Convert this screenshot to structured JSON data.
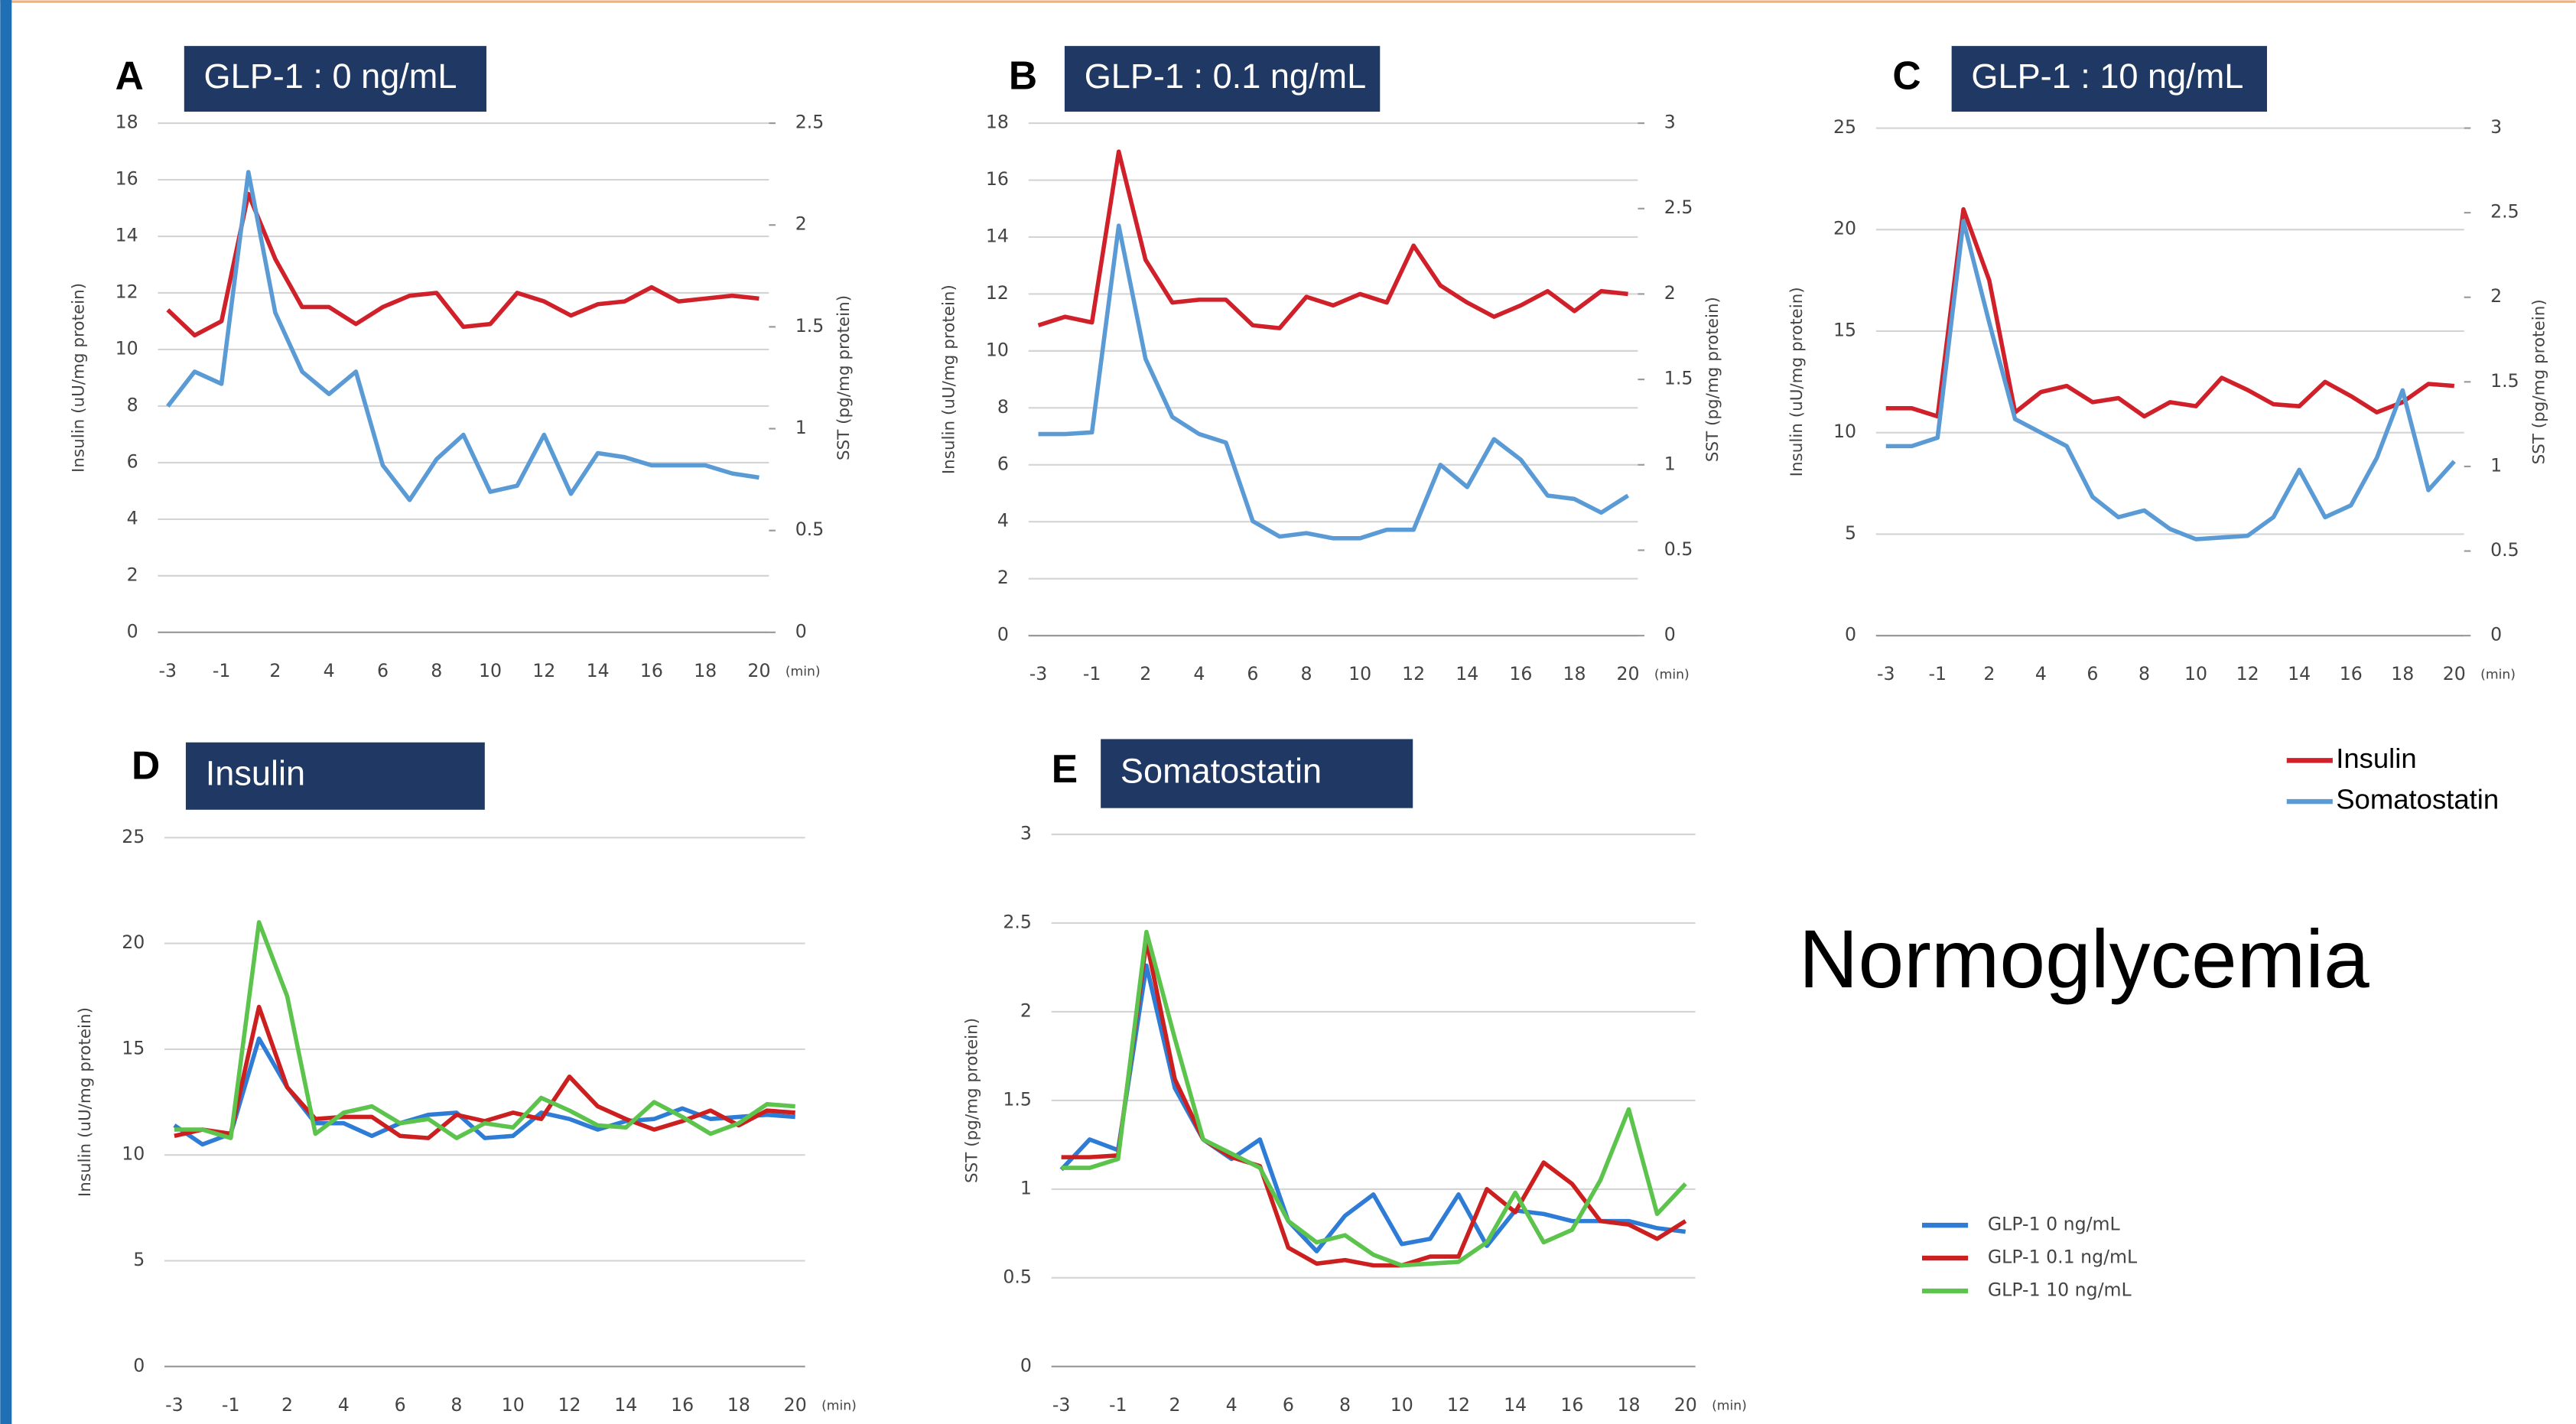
{
  "chart_data": [
    {
      "type": "line",
      "panel": "A",
      "title": "GLP-1 : 0 ng/mL",
      "xlabel": "(min)",
      "ylabel": "Insulin (uU/mg protein)",
      "y2label": "SST (pg/mg protein)",
      "categories": [
        "-3",
        null,
        "-1",
        null,
        "2",
        null,
        "4",
        null,
        "6",
        null,
        "8",
        null,
        "10",
        null,
        "12",
        null,
        "14",
        null,
        "16",
        null,
        "18",
        null,
        "20"
      ],
      "ylim": [
        0,
        18
      ],
      "yticks": [
        0,
        2,
        4,
        6,
        8,
        10,
        12,
        14,
        16,
        18
      ],
      "y2lim": [
        0,
        2.5
      ],
      "y2ticks": [
        0,
        0.5,
        1,
        1.5,
        2,
        2.5
      ],
      "grid": true,
      "series": [
        {
          "color": "#d0202a",
          "values": [
            11.4,
            10.5,
            11,
            15.5,
            13.2,
            11.5,
            11.5,
            10.9,
            11.5,
            11.9,
            12,
            10.8,
            10.9,
            12,
            11.7,
            11.2,
            11.6,
            11.7,
            12.2,
            11.7,
            11.8,
            11.9,
            11.8
          ]
        },
        {
          "color": "#5b9bd5",
          "axis": "y2",
          "values": [
            1.11,
            1.28,
            1.22,
            2.26,
            1.57,
            1.28,
            1.17,
            1.28,
            0.82,
            0.65,
            0.85,
            0.97,
            0.69,
            0.72,
            0.97,
            0.68,
            0.88,
            0.86,
            0.82,
            0.82,
            0.82,
            0.78,
            0.76
          ]
        }
      ]
    },
    {
      "type": "line",
      "panel": "B",
      "title": "GLP-1 : 0.1 ng/mL",
      "xlabel": "(min)",
      "ylabel": "Insulin (uU/mg protein)",
      "y2label": "SST (pg/mg protein)",
      "categories": [
        "-3",
        null,
        "-1",
        null,
        "2",
        null,
        "4",
        null,
        "6",
        null,
        "8",
        null,
        "10",
        null,
        "12",
        null,
        "14",
        null,
        "16",
        null,
        "18",
        null,
        "20"
      ],
      "ylim": [
        0,
        18
      ],
      "yticks": [
        0,
        2,
        4,
        6,
        8,
        10,
        12,
        14,
        16,
        18
      ],
      "y2lim": [
        0,
        3
      ],
      "y2ticks": [
        0,
        0.5,
        1,
        1.5,
        2,
        2.5,
        3
      ],
      "grid": true,
      "series": [
        {
          "color": "#d0202a",
          "values": [
            10.9,
            11.2,
            11,
            17,
            13.2,
            11.7,
            11.8,
            11.8,
            10.9,
            10.8,
            11.9,
            11.6,
            12,
            11.7,
            13.7,
            12.3,
            11.7,
            11.2,
            11.6,
            12.1,
            11.4,
            12.1,
            12
          ]
        },
        {
          "color": "#5b9bd5",
          "axis": "y2",
          "values": [
            1.18,
            1.18,
            1.19,
            2.4,
            1.62,
            1.28,
            1.18,
            1.13,
            0.67,
            0.58,
            0.6,
            0.57,
            0.57,
            0.62,
            0.62,
            1.0,
            0.87,
            1.15,
            1.03,
            0.82,
            0.8,
            0.72,
            0.82
          ]
        }
      ]
    },
    {
      "type": "line",
      "panel": "C",
      "title": "GLP-1 : 10 ng/mL",
      "xlabel": "(min)",
      "ylabel": "Insulin (uU/mg protein)",
      "y2label": "SST (pg/mg protein)",
      "categories": [
        "-3",
        null,
        "-1",
        null,
        "2",
        null,
        "4",
        null,
        "6",
        null,
        "8",
        null,
        "10",
        null,
        "12",
        null,
        "14",
        null,
        "16",
        null,
        "18",
        null,
        "20"
      ],
      "ylim": [
        0,
        25
      ],
      "yticks": [
        0,
        5,
        10,
        15,
        20,
        25
      ],
      "y2lim": [
        0,
        3
      ],
      "y2ticks": [
        0,
        0.5,
        1,
        1.5,
        2,
        2.5,
        3
      ],
      "grid": true,
      "legend": true,
      "series": [
        {
          "name": "Insulin",
          "color": "#d0202a",
          "values": [
            11.2,
            11.2,
            10.8,
            21,
            17.5,
            11,
            12,
            12.3,
            11.5,
            11.7,
            10.8,
            11.5,
            11.3,
            12.7,
            12.1,
            11.4,
            11.3,
            12.5,
            11.8,
            11,
            11.5,
            12.4,
            12.3
          ]
        },
        {
          "name": "Somatostatin",
          "color": "#5b9bd5",
          "axis": "y2",
          "values": [
            1.12,
            1.12,
            1.17,
            2.45,
            1.85,
            1.28,
            1.2,
            1.12,
            0.82,
            0.7,
            0.74,
            0.63,
            0.57,
            0.58,
            0.59,
            0.7,
            0.98,
            0.7,
            0.77,
            1.05,
            1.45,
            0.86,
            1.03
          ]
        }
      ]
    },
    {
      "type": "line",
      "panel": "D",
      "title": "Insulin",
      "xlabel": "(min)",
      "ylabel": "Insulin (uU/mg protein)",
      "categories": [
        "-3",
        null,
        "-1",
        null,
        "2",
        null,
        "4",
        null,
        "6",
        null,
        "8",
        null,
        "10",
        null,
        "12",
        null,
        "14",
        null,
        "16",
        null,
        "18",
        null,
        "20"
      ],
      "ylim": [
        0,
        25
      ],
      "yticks": [
        0,
        5,
        10,
        15,
        20,
        25
      ],
      "grid": true,
      "series": [
        {
          "color": "#2e7cd6",
          "values": [
            11.4,
            10.5,
            11,
            15.5,
            13.2,
            11.5,
            11.5,
            10.9,
            11.5,
            11.9,
            12,
            10.8,
            10.9,
            12,
            11.7,
            11.2,
            11.6,
            11.7,
            12.2,
            11.7,
            11.8,
            11.9,
            11.8
          ]
        },
        {
          "color": "#cc1f1f",
          "values": [
            10.9,
            11.2,
            11,
            17,
            13.2,
            11.7,
            11.8,
            11.8,
            10.9,
            10.8,
            11.9,
            11.6,
            12,
            11.7,
            13.7,
            12.3,
            11.7,
            11.2,
            11.6,
            12.1,
            11.4,
            12.1,
            12
          ]
        },
        {
          "color": "#5cc34c",
          "values": [
            11.2,
            11.2,
            10.8,
            21,
            17.5,
            11,
            12,
            12.3,
            11.5,
            11.7,
            10.8,
            11.5,
            11.3,
            12.7,
            12.1,
            11.4,
            11.3,
            12.5,
            11.8,
            11,
            11.5,
            12.4,
            12.3
          ]
        }
      ]
    },
    {
      "type": "line",
      "panel": "E",
      "title": "Somatostatin",
      "xlabel": "(min)",
      "ylabel": "SST (pg/mg protein)",
      "categories": [
        "-3",
        null,
        "-1",
        null,
        "2",
        null,
        "4",
        null,
        "6",
        null,
        "8",
        null,
        "10",
        null,
        "12",
        null,
        "14",
        null,
        "16",
        null,
        "18",
        null,
        "20"
      ],
      "ylim": [
        0,
        3
      ],
      "yticks": [
        0,
        0.5,
        1,
        1.5,
        2,
        2.5,
        3
      ],
      "grid": true,
      "legend": true,
      "series": [
        {
          "name": "GLP-1 0 ng/mL",
          "color": "#2e7cd6",
          "values": [
            1.11,
            1.28,
            1.22,
            2.26,
            1.57,
            1.28,
            1.17,
            1.28,
            0.82,
            0.65,
            0.85,
            0.97,
            0.69,
            0.72,
            0.97,
            0.68,
            0.88,
            0.86,
            0.82,
            0.82,
            0.82,
            0.78,
            0.76
          ]
        },
        {
          "name": "GLP-1 0.1 ng/mL",
          "color": "#cc1f1f",
          "values": [
            1.18,
            1.18,
            1.19,
            2.4,
            1.62,
            1.28,
            1.18,
            1.13,
            0.67,
            0.58,
            0.6,
            0.57,
            0.57,
            0.62,
            0.62,
            1.0,
            0.87,
            1.15,
            1.03,
            0.82,
            0.8,
            0.72,
            0.82
          ]
        },
        {
          "name": "GLP-1 10 ng/mL",
          "color": "#5cc34c",
          "values": [
            1.12,
            1.12,
            1.17,
            2.45,
            1.85,
            1.28,
            1.2,
            1.12,
            0.82,
            0.7,
            0.74,
            0.63,
            0.57,
            0.58,
            0.59,
            0.7,
            0.98,
            0.7,
            0.77,
            1.05,
            1.45,
            0.86,
            1.03
          ]
        }
      ]
    }
  ],
  "annotation": "Normoglycemia"
}
